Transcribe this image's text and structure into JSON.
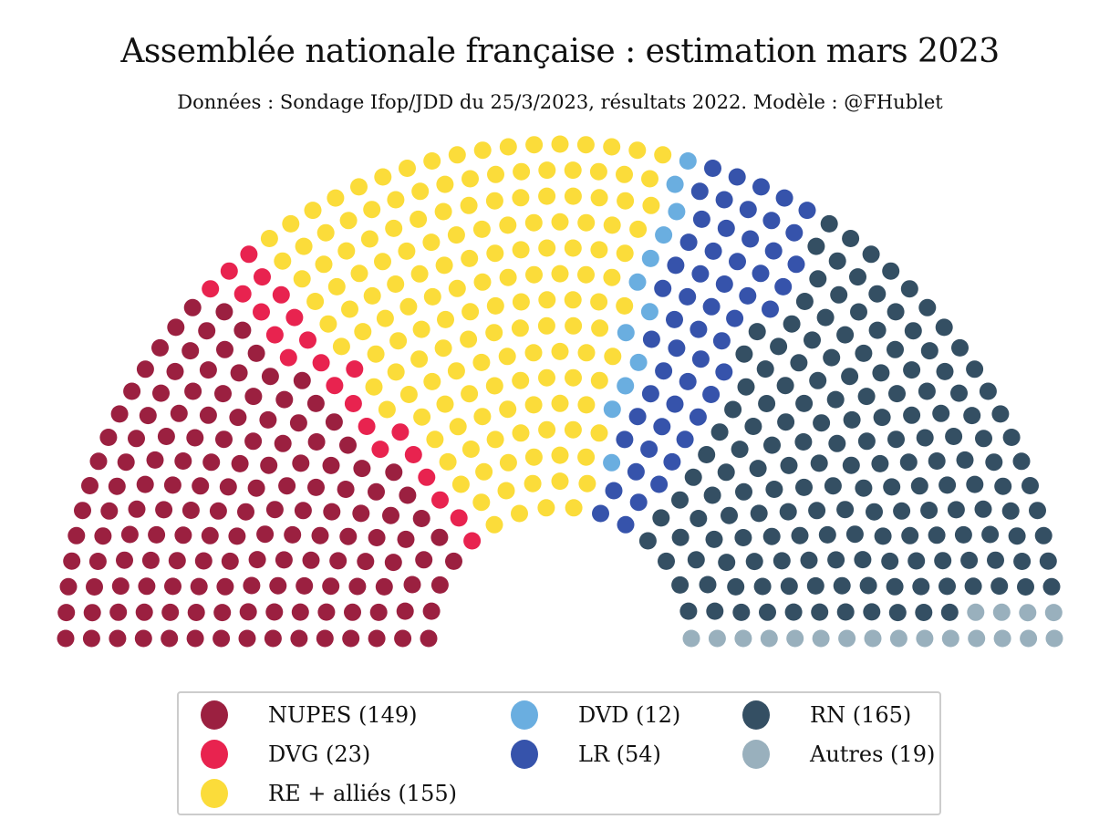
{
  "chart_data": {
    "type": "parliament",
    "title": "Assemblée nationale française : estimation mars 2023",
    "subtitle": "Données : Sondage Ifop/JDD du 25/3/2023, résultats 2022. Modèle : @FHublet",
    "total_seats": 577,
    "rows": 15,
    "parties": [
      {
        "name": "NUPES",
        "seats": 149,
        "color": "#9b2040",
        "label": "NUPES (149)"
      },
      {
        "name": "DVG",
        "seats": 23,
        "color": "#e8234f",
        "label": "DVG (23)"
      },
      {
        "name": "RE + alliés",
        "seats": 155,
        "color": "#fbdc3a",
        "label": "RE + alliés (155)"
      },
      {
        "name": "DVD",
        "seats": 12,
        "color": "#6aaee0",
        "label": "DVD (12)"
      },
      {
        "name": "LR",
        "seats": 54,
        "color": "#3653ab",
        "label": "LR (54)"
      },
      {
        "name": "RN",
        "seats": 165,
        "color": "#344f63",
        "label": "RN (165)"
      },
      {
        "name": "Autres",
        "seats": 19,
        "color": "#99b0bd",
        "label": "Autres (19)"
      }
    ],
    "legend_position": "bottom"
  }
}
